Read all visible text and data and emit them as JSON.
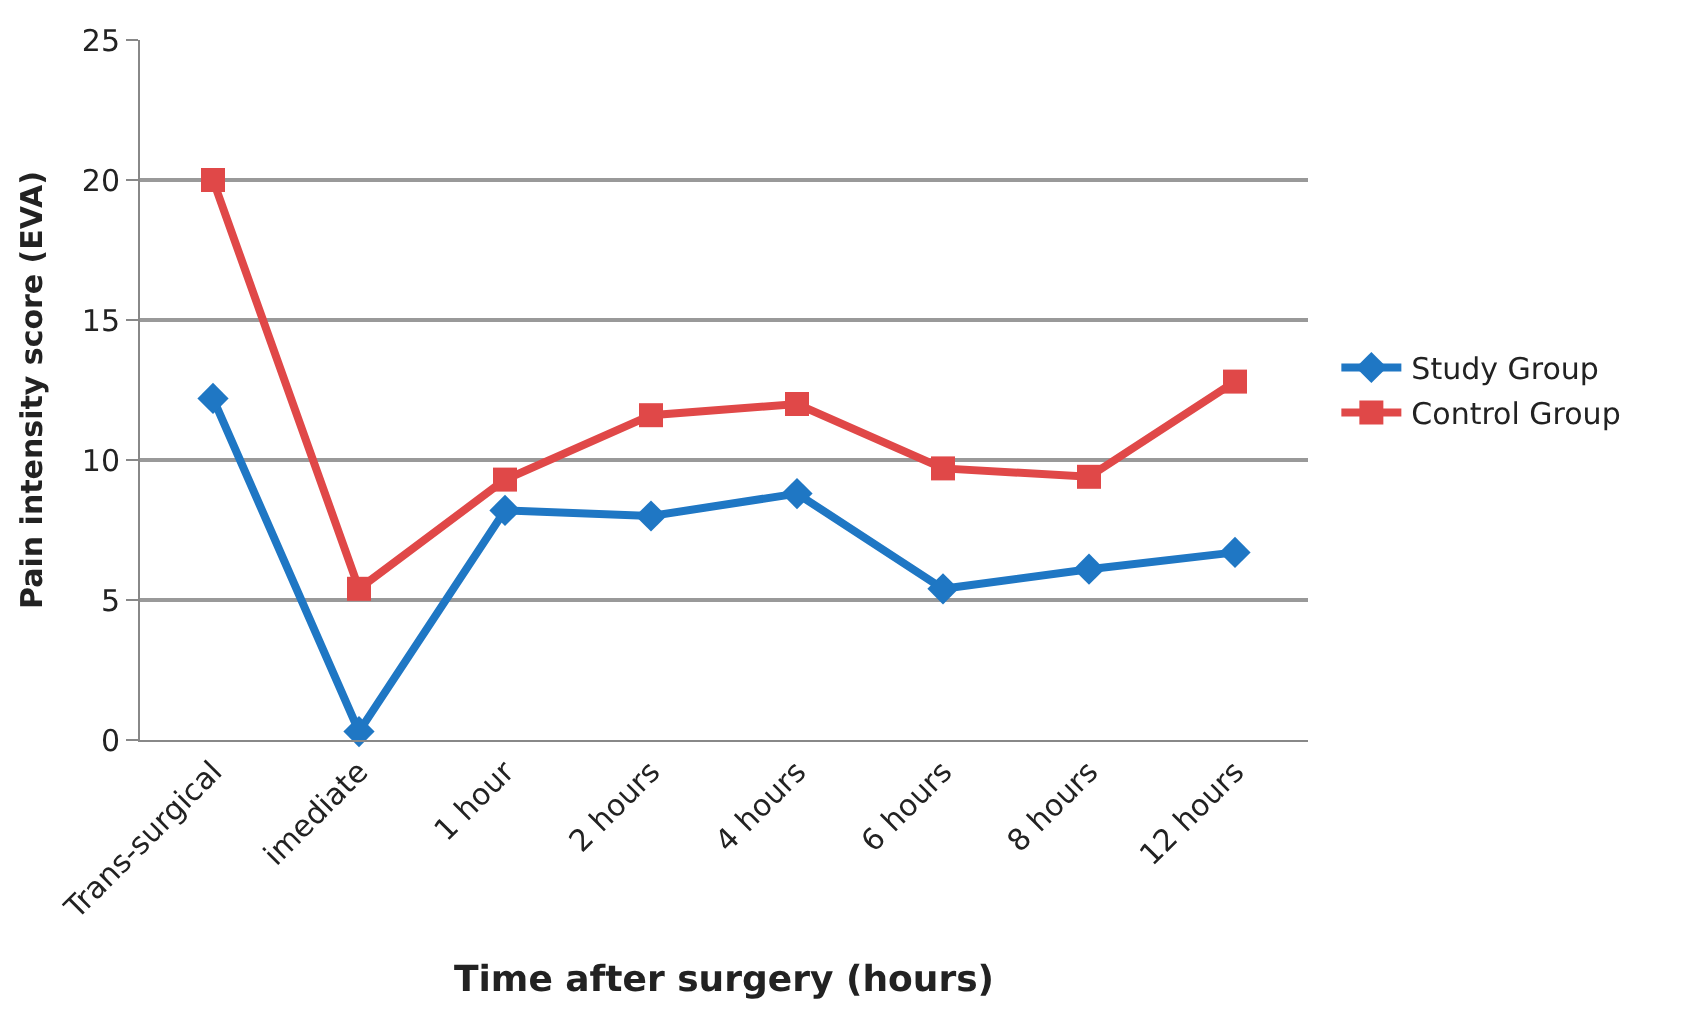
{
  "chart_data": {
    "type": "line",
    "categories": [
      "Trans-surgical",
      "imediate",
      "1 hour",
      "2 hours",
      "4 hours",
      "6 hours",
      "8 hours",
      "12 hours"
    ],
    "series": [
      {
        "name": "Study Group",
        "color": "#1f77c4",
        "marker": "diamond",
        "values": [
          12.2,
          0.3,
          8.2,
          8.0,
          8.8,
          5.4,
          6.1,
          6.7
        ]
      },
      {
        "name": "Control Group",
        "color": "#e04848",
        "marker": "square",
        "values": [
          20.0,
          5.4,
          9.3,
          11.6,
          12.0,
          9.7,
          9.4,
          12.8
        ]
      }
    ],
    "xlabel": "Time after surgery (hours)",
    "ylabel": "Pain intensity score (EVA)",
    "ylim": [
      0,
      25
    ],
    "yticks": [
      0,
      5,
      10,
      15,
      20,
      25
    ],
    "grid": "y",
    "legend": "right",
    "line_style": "solid"
  }
}
